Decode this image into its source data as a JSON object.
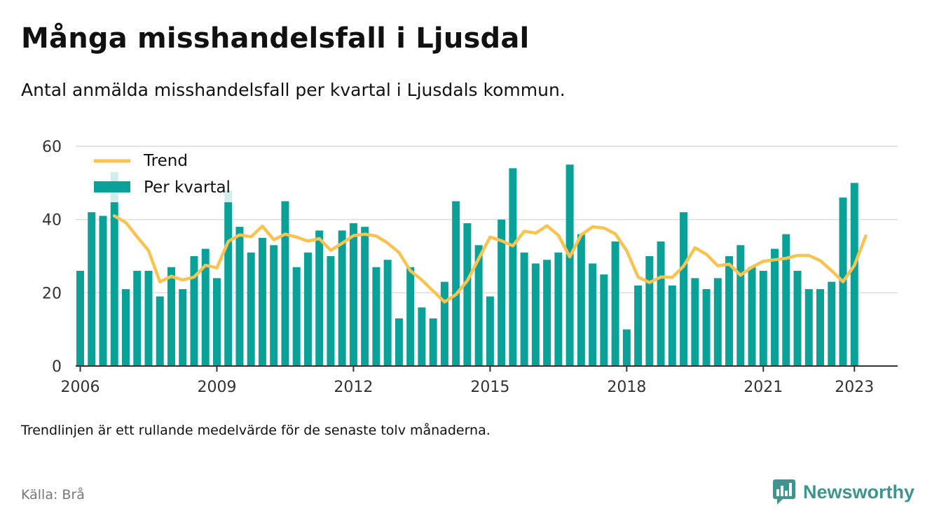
{
  "header": {
    "title": "Många misshandelsfall i Ljusdal",
    "subtitle": "Antal anmälda misshandelsfall per kvartal i Ljusdals kommun."
  },
  "footer": {
    "note": "Trendlinjen är ett rullande medelvärde för de senaste tolv månaderna.",
    "source": "Källa: Brå",
    "brand": "Newsworthy",
    "brand_icon": "newsworthy-logo-icon"
  },
  "colors": {
    "bars": "#0aa298",
    "trend": "#f9c350",
    "grid": "#dcdcdc",
    "axis": "#333333",
    "brand": "#3e9490"
  },
  "chart_data": {
    "type": "bar",
    "title": "Många misshandelsfall i Ljusdal",
    "subtitle": "Antal anmälda misshandelsfall per kvartal i Ljusdals kommun.",
    "legend": {
      "placement": "top-left",
      "entries": [
        "Trend",
        "Per kvartal"
      ]
    },
    "grid": true,
    "ylim": [
      0,
      60
    ],
    "yticks": [
      0,
      20,
      40,
      60
    ],
    "xlim": [
      2005.9,
      2023.95
    ],
    "xticks": [
      2006,
      2009,
      2012,
      2015,
      2018,
      2021,
      2023
    ],
    "x_start_year": 2006,
    "series": [
      {
        "name": "Per kvartal",
        "type": "bar",
        "values": [
          26,
          42,
          41,
          53,
          21,
          26,
          26,
          19,
          27,
          21,
          30,
          32,
          24,
          48,
          38,
          31,
          35,
          33,
          45,
          27,
          31,
          37,
          30,
          37,
          39,
          38,
          27,
          29,
          13,
          27,
          16,
          13,
          23,
          45,
          39,
          33,
          19,
          40,
          54,
          31,
          28,
          29,
          31,
          55,
          36,
          28,
          25,
          34,
          10,
          22,
          30,
          34,
          22,
          42,
          24,
          21,
          24,
          30,
          33,
          27,
          26,
          32,
          36,
          26,
          21,
          21,
          23,
          46,
          50
        ]
      },
      {
        "name": "Trend",
        "type": "line",
        "start_index": 3,
        "values": [
          41,
          39.2,
          35.3,
          31.5,
          23,
          24.5,
          23.5,
          24.3,
          27.5,
          26.8,
          34,
          35.8,
          35.3,
          38.2,
          34.5,
          36,
          35.2,
          34.1,
          34.8,
          31.6,
          33.5,
          35.6,
          36,
          35.5,
          33.6,
          31,
          26,
          23.5,
          20.5,
          17.5,
          19.5,
          23.3,
          29.3,
          35.2,
          34.2,
          32.8,
          36.8,
          36.3,
          38.3,
          35.7,
          29.8,
          35.8,
          38,
          37.7,
          36.1,
          31.5,
          24.3,
          22.8,
          24.3,
          24.2,
          27.3,
          32.3,
          30.5,
          27.4,
          27.8,
          24.8,
          27,
          28.6,
          29,
          29.4,
          30.2,
          30.2,
          28.8,
          26,
          23,
          27.5,
          35.5
        ]
      }
    ]
  }
}
